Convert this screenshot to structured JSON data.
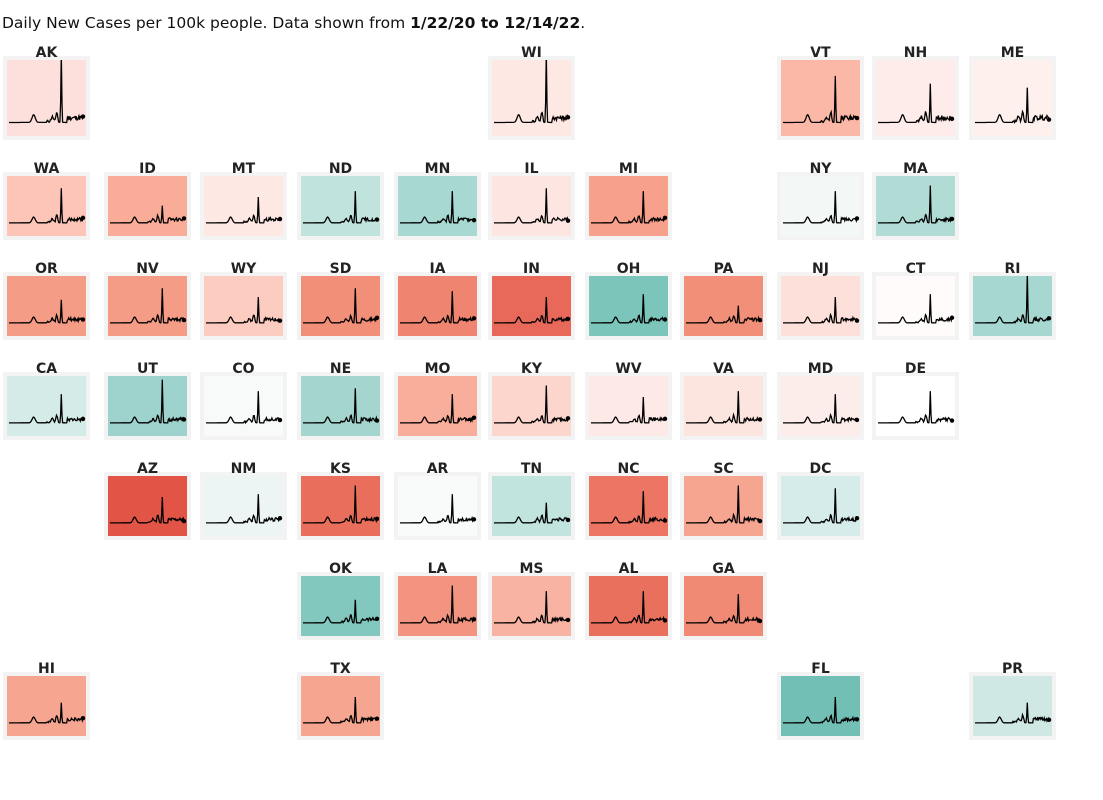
{
  "title": {
    "prefix": "Daily New Cases per 100k people. Data shown from ",
    "range": "1/22/20 to 12/14/22",
    "suffix": "."
  },
  "chart_data": {
    "type": "tile-map-sparklines",
    "title": "Daily New Cases per 100k people. Data shown from 1/22/20 to 12/14/22.",
    "date_range": [
      "1/22/20",
      "12/14/22"
    ],
    "states": [
      {
        "code": "AK",
        "color": "#fde0dc",
        "peak": 0.9
      },
      {
        "code": "WI",
        "color": "#fde8e4",
        "peak": 0.9
      },
      {
        "code": "VT",
        "color": "#fbb8a6",
        "peak": 0.6
      },
      {
        "code": "NH",
        "color": "#fdecea",
        "peak": 0.5
      },
      {
        "code": "ME",
        "color": "#fef0ed",
        "peak": 0.45
      },
      {
        "code": "WA",
        "color": "#fcc5b7",
        "peak": 0.6
      },
      {
        "code": "ID",
        "color": "#f9ad98",
        "peak": 0.3
      },
      {
        "code": "MT",
        "color": "#fde8e3",
        "peak": 0.45
      },
      {
        "code": "ND",
        "color": "#c0e3dd",
        "peak": 0.55
      },
      {
        "code": "MN",
        "color": "#a8d8d2",
        "peak": 0.55
      },
      {
        "code": "IL",
        "color": "#fde6e1",
        "peak": 0.6
      },
      {
        "code": "MI",
        "color": "#f7a08c",
        "peak": 0.55
      },
      {
        "code": "NY",
        "color": "#f3f8f7",
        "peak": 0.55
      },
      {
        "code": "MA",
        "color": "#b1dcd6",
        "peak": 0.65
      },
      {
        "code": "OR",
        "color": "#f59c86",
        "peak": 0.4
      },
      {
        "code": "NV",
        "color": "#f59c86",
        "peak": 0.6
      },
      {
        "code": "WY",
        "color": "#fcccc1",
        "peak": 0.45
      },
      {
        "code": "SD",
        "color": "#f28f78",
        "peak": 0.6
      },
      {
        "code": "IA",
        "color": "#ef8570",
        "peak": 0.55
      },
      {
        "code": "IN",
        "color": "#e8685a",
        "peak": 0.45
      },
      {
        "code": "OH",
        "color": "#7cc5bb",
        "peak": 0.5
      },
      {
        "code": "PA",
        "color": "#f28f78",
        "peak": 0.3
      },
      {
        "code": "NJ",
        "color": "#fde0d9",
        "peak": 0.45
      },
      {
        "code": "CT",
        "color": "#fefbfa",
        "peak": 0.5
      },
      {
        "code": "RI",
        "color": "#a6d7d0",
        "peak": 0.85
      },
      {
        "code": "CA",
        "color": "#d4ebe8",
        "peak": 0.5
      },
      {
        "code": "UT",
        "color": "#9dd3cc",
        "peak": 0.75
      },
      {
        "code": "CO",
        "color": "#f7faf9",
        "peak": 0.55
      },
      {
        "code": "NE",
        "color": "#a4d6cf",
        "peak": 0.6
      },
      {
        "code": "MO",
        "color": "#f8ae9b",
        "peak": 0.5
      },
      {
        "code": "KY",
        "color": "#fcd6cc",
        "peak": 0.65
      },
      {
        "code": "WV",
        "color": "#fdeae7",
        "peak": 0.45
      },
      {
        "code": "VA",
        "color": "#fde5df",
        "peak": 0.55
      },
      {
        "code": "MD",
        "color": "#fdedea",
        "peak": 0.5
      },
      {
        "code": "DE",
        "color": "#ffffff",
        "peak": 0.55
      },
      {
        "code": "AZ",
        "color": "#e25546",
        "peak": 0.45
      },
      {
        "code": "NM",
        "color": "#ecf5f4",
        "peak": 0.5
      },
      {
        "code": "KS",
        "color": "#ea6e5c",
        "peak": 0.65
      },
      {
        "code": "AR",
        "color": "#f8fbfa",
        "peak": 0.5
      },
      {
        "code": "TN",
        "color": "#c2e4de",
        "peak": 0.35
      },
      {
        "code": "NC",
        "color": "#ec7563",
        "peak": 0.55
      },
      {
        "code": "SC",
        "color": "#f6a590",
        "peak": 0.65
      },
      {
        "code": "DC",
        "color": "#d6ecea",
        "peak": 0.6
      },
      {
        "code": "OK",
        "color": "#82c8bf",
        "peak": 0.4
      },
      {
        "code": "LA",
        "color": "#f29480",
        "peak": 0.65
      },
      {
        "code": "MS",
        "color": "#f9b3a2",
        "peak": 0.55
      },
      {
        "code": "AL",
        "color": "#ea705e",
        "peak": 0.55
      },
      {
        "code": "GA",
        "color": "#f08a74",
        "peak": 0.5
      },
      {
        "code": "HI",
        "color": "#f6a591",
        "peak": 0.35
      },
      {
        "code": "TX",
        "color": "#f6a591",
        "peak": 0.45
      },
      {
        "code": "FL",
        "color": "#72bfb5",
        "peak": 0.45
      },
      {
        "code": "PR",
        "color": "#cfe8e4",
        "peak": 0.35
      }
    ]
  }
}
